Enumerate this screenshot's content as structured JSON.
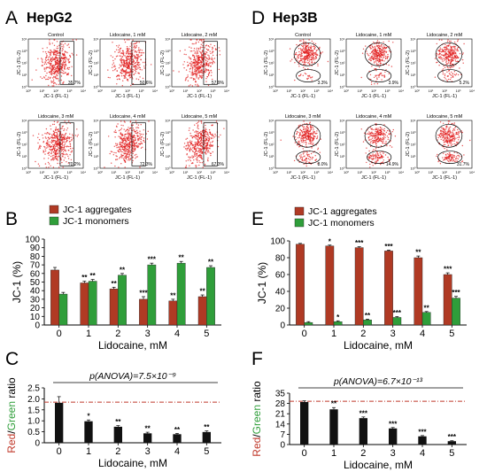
{
  "panels": {
    "A": {
      "letter": "A",
      "title": "HepG2"
    },
    "B": {
      "letter": "B"
    },
    "C": {
      "letter": "C"
    },
    "D": {
      "letter": "D",
      "title": "Hep3B"
    },
    "E": {
      "letter": "E"
    },
    "F": {
      "letter": "F"
    }
  },
  "colors": {
    "aggregates": "#b03a24",
    "monomers": "#2f9e3a",
    "ratio_bar": "#111111",
    "threshold": "#c0392b",
    "dots": "#e01818",
    "red_word": "#c0392b",
    "green_word": "#2f9e3a"
  },
  "flow": {
    "xlabel": "JC-1 (FL-1)",
    "ylabel": "JC-1 (FL-2)",
    "ticks": [
      "10⁰",
      "10¹",
      "10²",
      "10³",
      "10⁴"
    ],
    "hepg2": [
      {
        "title": "Control",
        "pct": "35.7%"
      },
      {
        "title": "Lidocaine, 1 mM",
        "pct": "50.6%"
      },
      {
        "title": "Lidocaine, 2 mM",
        "pct": "57.9%"
      },
      {
        "title": "Lidocaine, 3 mM",
        "pct": "70.2%"
      },
      {
        "title": "Lidocaine, 4 mM",
        "pct": "72.3%"
      },
      {
        "title": "Lidocaine, 5 mM",
        "pct": "67.3%"
      }
    ],
    "hep3b": [
      {
        "title": "Control",
        "pct": "3.3%"
      },
      {
        "title": "Lidocaine, 1 mM",
        "pct": "3.9%"
      },
      {
        "title": "Lidocaine, 2 mM",
        "pct": "5.2%"
      },
      {
        "title": "Lidocaine, 3 mM",
        "pct": "8.0%"
      },
      {
        "title": "Lidocaine, 4 mM",
        "pct": "14.9%"
      },
      {
        "title": "Lidocaine, 5 mM",
        "pct": "31.7%"
      }
    ]
  },
  "chart_data": [
    {
      "panel": "B",
      "type": "bar",
      "xlabel": "Lidocaine, mM",
      "ylabel": "JC-1 (%)",
      "ylim": [
        0,
        100
      ],
      "yticks": [
        0,
        10,
        20,
        30,
        40,
        50,
        60,
        70,
        80,
        90,
        100
      ],
      "categories": [
        "0",
        "1",
        "2",
        "3",
        "4",
        "5"
      ],
      "legend": "top-left",
      "series": [
        {
          "name": "JC-1 aggregates",
          "values": [
            64,
            49,
            42,
            30,
            28,
            33
          ],
          "errors": [
            3,
            2,
            2,
            3,
            2,
            2
          ],
          "sig": [
            "",
            "**",
            "**",
            "***",
            "**",
            "**"
          ]
        },
        {
          "name": "JC-1 monomers",
          "values": [
            36,
            51,
            58,
            70,
            72,
            67
          ],
          "errors": [
            2,
            2,
            2,
            2,
            2,
            2
          ],
          "sig": [
            "",
            "**",
            "**",
            "***",
            "**",
            "**"
          ]
        }
      ]
    },
    {
      "panel": "C",
      "type": "bar",
      "title": "p(ANOVA)=7.5×10⁻⁹",
      "xlabel": "Lidocaine, mM",
      "ylabel_parts": [
        "Red",
        "/",
        "Green",
        " ratio"
      ],
      "ylim": [
        0,
        2.5
      ],
      "yticks": [
        0,
        0.5,
        1.0,
        1.5,
        2.0,
        2.5
      ],
      "ytick_labels": [
        "0",
        "0.5",
        "1.0",
        "1.5",
        "2.0",
        "2.5"
      ],
      "categories": [
        "0",
        "1",
        "2",
        "3",
        "4",
        "5"
      ],
      "values": [
        1.82,
        0.98,
        0.73,
        0.43,
        0.39,
        0.49
      ],
      "errors": [
        0.28,
        0.06,
        0.05,
        0.05,
        0.04,
        0.05
      ],
      "sig": [
        "",
        "*",
        "**",
        "**",
        "**",
        "**"
      ],
      "threshold": 1.85
    },
    {
      "panel": "E",
      "type": "bar",
      "xlabel": "Lidocaine, mM",
      "ylabel": "JC-1 (%)",
      "ylim": [
        0,
        100
      ],
      "yticks": [
        0,
        20,
        40,
        60,
        80,
        100
      ],
      "categories": [
        "0",
        "1",
        "2",
        "3",
        "4",
        "5"
      ],
      "legend": "top-left",
      "series": [
        {
          "name": "JC-1 aggregates",
          "values": [
            96,
            94,
            92,
            88,
            80,
            60
          ],
          "errors": [
            1,
            1,
            1,
            1,
            2,
            2
          ],
          "sig": [
            "",
            "*",
            "***",
            "***",
            "**",
            "***"
          ]
        },
        {
          "name": "JC-1 monomers",
          "values": [
            3,
            4,
            6,
            9,
            15,
            32
          ],
          "errors": [
            1,
            1,
            1,
            1,
            1,
            2
          ],
          "sig": [
            "",
            "*",
            "**",
            "***",
            "**",
            "***"
          ]
        }
      ]
    },
    {
      "panel": "F",
      "type": "bar",
      "title": "p(ANOVA)=6.7×10⁻¹³",
      "xlabel": "Lidocaine, mM",
      "ylabel_parts": [
        "Red",
        "/",
        "Green",
        " ratio"
      ],
      "ylim": [
        0,
        35
      ],
      "yticks": [
        0,
        7,
        14,
        21,
        28,
        35
      ],
      "ytick_labels": [
        "0",
        "7",
        "14",
        "21",
        "28",
        "35"
      ],
      "categories": [
        "0",
        "1",
        "2",
        "3",
        "4",
        "5"
      ],
      "values": [
        29,
        24,
        18,
        11,
        5.6,
        2.3
      ],
      "errors": [
        0.8,
        1.2,
        0.8,
        0.6,
        0.5,
        0.3
      ],
      "sig": [
        "",
        "**",
        "***",
        "***",
        "***",
        "***"
      ],
      "threshold": 29.5
    }
  ]
}
